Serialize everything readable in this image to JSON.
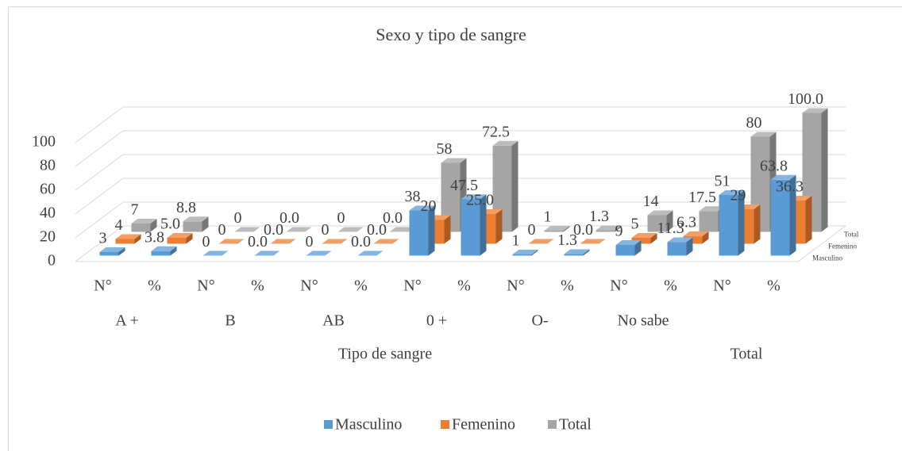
{
  "chart_data": {
    "type": "bar3d",
    "title": "Sexo y tipo de sangre",
    "categories": [
      "N°",
      "%",
      "N°",
      "%",
      "N°",
      "%",
      "N°",
      "%",
      "N°",
      "%",
      "N°",
      "%",
      "N°",
      "%"
    ],
    "groups": [
      "A +",
      "B",
      "AB",
      "0 +",
      "O-",
      "No sabe",
      null
    ],
    "super_groups": [
      "Tipo de sangre",
      "Total"
    ],
    "series": [
      {
        "name": "Masculino",
        "color": "#5b9bd5",
        "values": [
          3,
          3.8,
          0,
          0,
          0,
          0,
          38,
          47.5,
          1,
          1.3,
          9,
          11.3,
          51,
          63.8
        ],
        "value_labels": [
          "3",
          "3.8",
          "0",
          "0.0",
          "0",
          "0.0",
          "38",
          "47.5",
          "1",
          "1.3",
          "9",
          "11.3",
          "51",
          "63.8"
        ]
      },
      {
        "name": "Femenino",
        "color": "#ed7d31",
        "values": [
          4,
          5,
          0,
          0,
          0,
          0,
          20,
          25,
          0,
          0,
          5,
          6.3,
          29,
          36.3
        ],
        "value_labels": [
          "4",
          "5.0",
          "0",
          "0.0",
          "0",
          "0.0",
          "20",
          "25.0",
          "0",
          "0.0",
          "5",
          "6.3",
          "29",
          "36.3"
        ]
      },
      {
        "name": "Total",
        "color": "#a5a5a5",
        "values": [
          7,
          8.8,
          0,
          0,
          0,
          0,
          58,
          72.5,
          1,
          1.3,
          14,
          17.5,
          80,
          100
        ],
        "value_labels": [
          "7",
          "8.8",
          "0",
          "0.0",
          "0",
          "0.0",
          "58",
          "72.5",
          "1",
          "1.3",
          "14",
          "17.5",
          "80",
          "100.0"
        ]
      }
    ],
    "ylim": [
      0,
      100
    ],
    "yticks": [
      0,
      20,
      40,
      60,
      80,
      100
    ],
    "grid": true,
    "legend": "bottom"
  }
}
